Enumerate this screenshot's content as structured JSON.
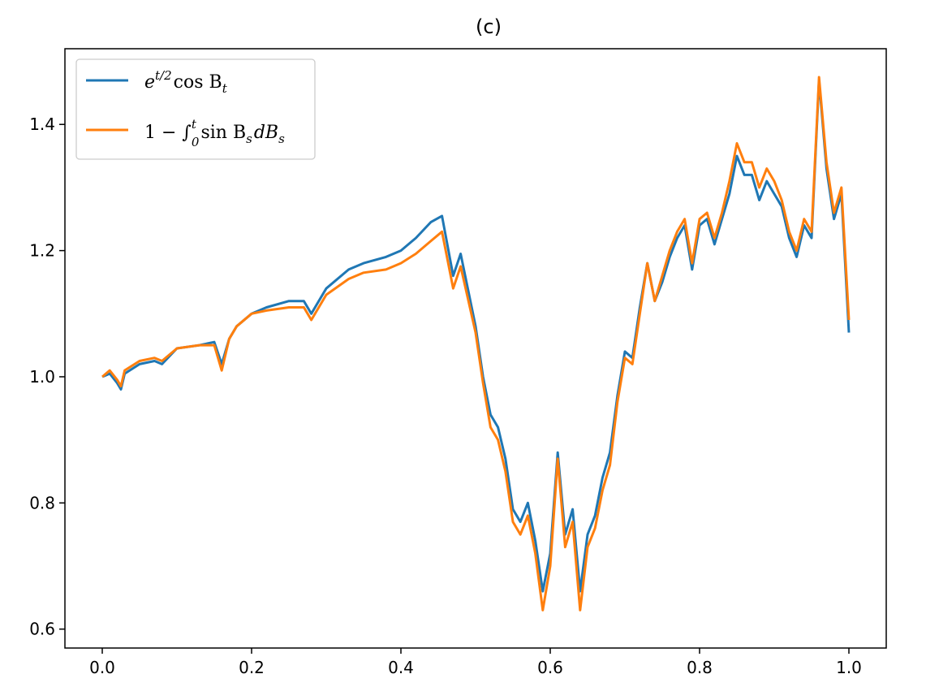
{
  "chart_data": {
    "type": "line",
    "title": "(c)",
    "xlabel": "",
    "ylabel": "",
    "xlim": [
      -0.05,
      1.05
    ],
    "ylim": [
      0.57,
      1.52
    ],
    "xticks": [
      "0.0",
      "0.2",
      "0.4",
      "0.6",
      "0.8",
      "1.0"
    ],
    "xtick_values": [
      0.0,
      0.2,
      0.4,
      0.6,
      0.8,
      1.0
    ],
    "yticks": [
      "0.6",
      "0.8",
      "1.0",
      "1.2",
      "1.4"
    ],
    "ytick_values": [
      0.6,
      0.8,
      1.0,
      1.2,
      1.4
    ],
    "grid": false,
    "legend_position": "top-left",
    "series": [
      {
        "name": "e^{t/2} cos B_t",
        "legend_main": "e",
        "legend_sup": "t/2",
        "legend_rest": "cos B",
        "legend_sub": "t",
        "color": "#1f77b4",
        "x": [
          0.0,
          0.01,
          0.02,
          0.025,
          0.03,
          0.05,
          0.07,
          0.08,
          0.1,
          0.13,
          0.15,
          0.16,
          0.17,
          0.18,
          0.2,
          0.22,
          0.25,
          0.27,
          0.28,
          0.3,
          0.33,
          0.35,
          0.38,
          0.4,
          0.42,
          0.44,
          0.455,
          0.47,
          0.48,
          0.5,
          0.51,
          0.52,
          0.53,
          0.54,
          0.55,
          0.56,
          0.57,
          0.58,
          0.59,
          0.6,
          0.61,
          0.62,
          0.63,
          0.64,
          0.65,
          0.66,
          0.67,
          0.68,
          0.69,
          0.7,
          0.71,
          0.72,
          0.73,
          0.74,
          0.75,
          0.76,
          0.77,
          0.78,
          0.79,
          0.8,
          0.81,
          0.82,
          0.83,
          0.84,
          0.85,
          0.86,
          0.87,
          0.88,
          0.89,
          0.9,
          0.91,
          0.92,
          0.93,
          0.94,
          0.95,
          0.96,
          0.97,
          0.98,
          0.99,
          1.0
        ],
        "y": [
          1.0,
          1.005,
          0.99,
          0.98,
          1.005,
          1.02,
          1.025,
          1.02,
          1.045,
          1.05,
          1.055,
          1.02,
          1.06,
          1.08,
          1.1,
          1.11,
          1.12,
          1.12,
          1.1,
          1.14,
          1.17,
          1.18,
          1.19,
          1.2,
          1.22,
          1.245,
          1.255,
          1.16,
          1.195,
          1.08,
          1.0,
          0.94,
          0.92,
          0.87,
          0.79,
          0.77,
          0.8,
          0.74,
          0.66,
          0.72,
          0.88,
          0.75,
          0.79,
          0.66,
          0.75,
          0.78,
          0.84,
          0.88,
          0.97,
          1.04,
          1.03,
          1.11,
          1.18,
          1.12,
          1.15,
          1.19,
          1.22,
          1.24,
          1.17,
          1.24,
          1.25,
          1.21,
          1.25,
          1.29,
          1.35,
          1.32,
          1.32,
          1.28,
          1.31,
          1.29,
          1.27,
          1.22,
          1.19,
          1.24,
          1.22,
          1.47,
          1.33,
          1.25,
          1.29,
          1.07
        ]
      },
      {
        "name": "1 − ∫₀ᵗ sin B_s dB_s",
        "legend_main": "1 − ∫",
        "legend_sup": "t",
        "legend_sub0": "0",
        "legend_rest": "sin B",
        "legend_sub": "s",
        "legend_tail": "dB",
        "legend_sub2": "s",
        "color": "#ff7f0e",
        "x": [
          0.0,
          0.01,
          0.02,
          0.025,
          0.03,
          0.05,
          0.07,
          0.08,
          0.1,
          0.13,
          0.15,
          0.16,
          0.17,
          0.18,
          0.2,
          0.22,
          0.25,
          0.27,
          0.28,
          0.3,
          0.33,
          0.35,
          0.38,
          0.4,
          0.42,
          0.44,
          0.455,
          0.47,
          0.48,
          0.5,
          0.51,
          0.52,
          0.53,
          0.54,
          0.55,
          0.56,
          0.57,
          0.58,
          0.59,
          0.6,
          0.61,
          0.62,
          0.63,
          0.64,
          0.65,
          0.66,
          0.67,
          0.68,
          0.69,
          0.7,
          0.71,
          0.72,
          0.73,
          0.74,
          0.75,
          0.76,
          0.77,
          0.78,
          0.79,
          0.8,
          0.81,
          0.82,
          0.83,
          0.84,
          0.85,
          0.86,
          0.87,
          0.88,
          0.89,
          0.9,
          0.91,
          0.92,
          0.93,
          0.94,
          0.95,
          0.96,
          0.97,
          0.98,
          0.99,
          1.0
        ],
        "y": [
          1.0,
          1.01,
          0.995,
          0.985,
          1.01,
          1.025,
          1.03,
          1.025,
          1.045,
          1.05,
          1.05,
          1.01,
          1.06,
          1.08,
          1.1,
          1.105,
          1.11,
          1.11,
          1.09,
          1.13,
          1.155,
          1.165,
          1.17,
          1.18,
          1.195,
          1.215,
          1.23,
          1.14,
          1.175,
          1.07,
          0.99,
          0.92,
          0.9,
          0.85,
          0.77,
          0.75,
          0.78,
          0.72,
          0.63,
          0.7,
          0.87,
          0.73,
          0.77,
          0.63,
          0.73,
          0.76,
          0.82,
          0.86,
          0.96,
          1.03,
          1.02,
          1.1,
          1.18,
          1.12,
          1.16,
          1.2,
          1.23,
          1.25,
          1.18,
          1.25,
          1.26,
          1.22,
          1.26,
          1.31,
          1.37,
          1.34,
          1.34,
          1.3,
          1.33,
          1.31,
          1.28,
          1.23,
          1.2,
          1.25,
          1.23,
          1.475,
          1.34,
          1.26,
          1.3,
          1.09
        ]
      }
    ]
  }
}
